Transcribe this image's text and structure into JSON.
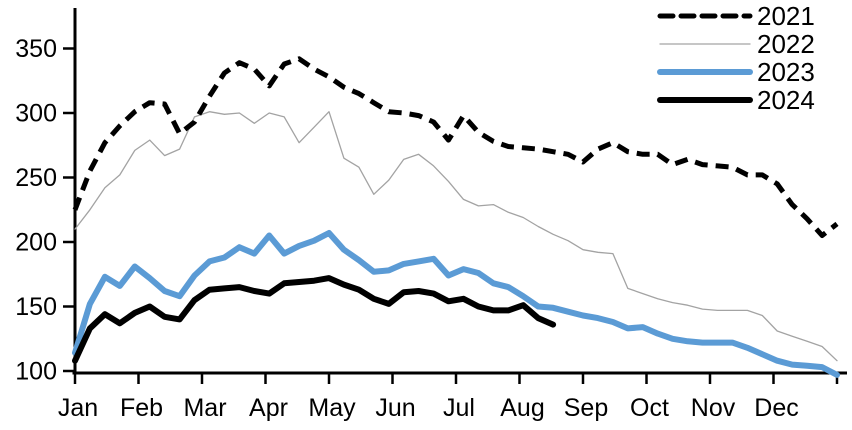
{
  "chart_data": {
    "type": "line",
    "title": "",
    "x_unit": "week-of-year",
    "weeks_per_year": 52,
    "month_labels": [
      "Jan",
      "Feb",
      "Mar",
      "Apr",
      "May",
      "Jun",
      "Jul",
      "Aug",
      "Sep",
      "Oct",
      "Nov",
      "Dec"
    ],
    "y_axis": {
      "min": 100,
      "max": 350,
      "ticks": [
        100,
        150,
        200,
        250,
        300,
        350
      ]
    },
    "grid": false,
    "legend_position": "top-right",
    "series": [
      {
        "name": "2021",
        "color": "#000000",
        "style": "dashed",
        "stroke_width": 5,
        "values": [
          225,
          255,
          277,
          290,
          301,
          308,
          307,
          284,
          293,
          313,
          331,
          339,
          334,
          321,
          338,
          342,
          334,
          328,
          320,
          315,
          308,
          301,
          300,
          298,
          293,
          279,
          298,
          285,
          278,
          274,
          273,
          272,
          270,
          268,
          262,
          272,
          277,
          270,
          268,
          268,
          260,
          264,
          260,
          259,
          258,
          252,
          252,
          245,
          229,
          218,
          205,
          214
        ]
      },
      {
        "name": "2022",
        "color": "#a3a3a3",
        "style": "solid",
        "stroke_width": 1.3,
        "values": [
          210,
          225,
          242,
          252,
          271,
          279,
          267,
          272,
          297,
          301,
          299,
          300,
          292,
          300,
          297,
          277,
          289,
          301,
          265,
          258,
          237,
          248,
          264,
          268,
          259,
          247,
          233,
          228,
          229,
          223,
          219,
          212,
          206,
          201,
          194,
          192,
          191,
          164,
          160,
          156,
          153,
          151,
          148,
          147,
          147,
          147,
          143,
          131,
          127,
          123,
          119,
          108
        ]
      },
      {
        "name": "2023",
        "color": "#5b9bd5",
        "style": "solid",
        "stroke_width": 6,
        "values": [
          114,
          152,
          173,
          166,
          181,
          172,
          162,
          158,
          174,
          185,
          188,
          196,
          191,
          205,
          191,
          197,
          201,
          207,
          194,
          186,
          177,
          178,
          183,
          185,
          187,
          174,
          179,
          176,
          168,
          165,
          158,
          150,
          149,
          146,
          143,
          141,
          138,
          133,
          134,
          129,
          125,
          123,
          122,
          122,
          122,
          118,
          113,
          108,
          105,
          104,
          103,
          97
        ]
      },
      {
        "name": "2024",
        "color": "#000000",
        "style": "solid",
        "stroke_width": 6,
        "values": [
          108,
          133,
          144,
          137,
          145,
          150,
          142,
          140,
          155,
          163,
          164,
          165,
          162,
          160,
          168,
          169,
          170,
          172,
          167,
          163,
          156,
          152,
          161,
          162,
          160,
          154,
          156,
          150,
          147,
          147,
          151,
          141,
          136
        ]
      }
    ]
  },
  "layout_colors": {
    "axis": "#000000",
    "background": "#ffffff"
  }
}
